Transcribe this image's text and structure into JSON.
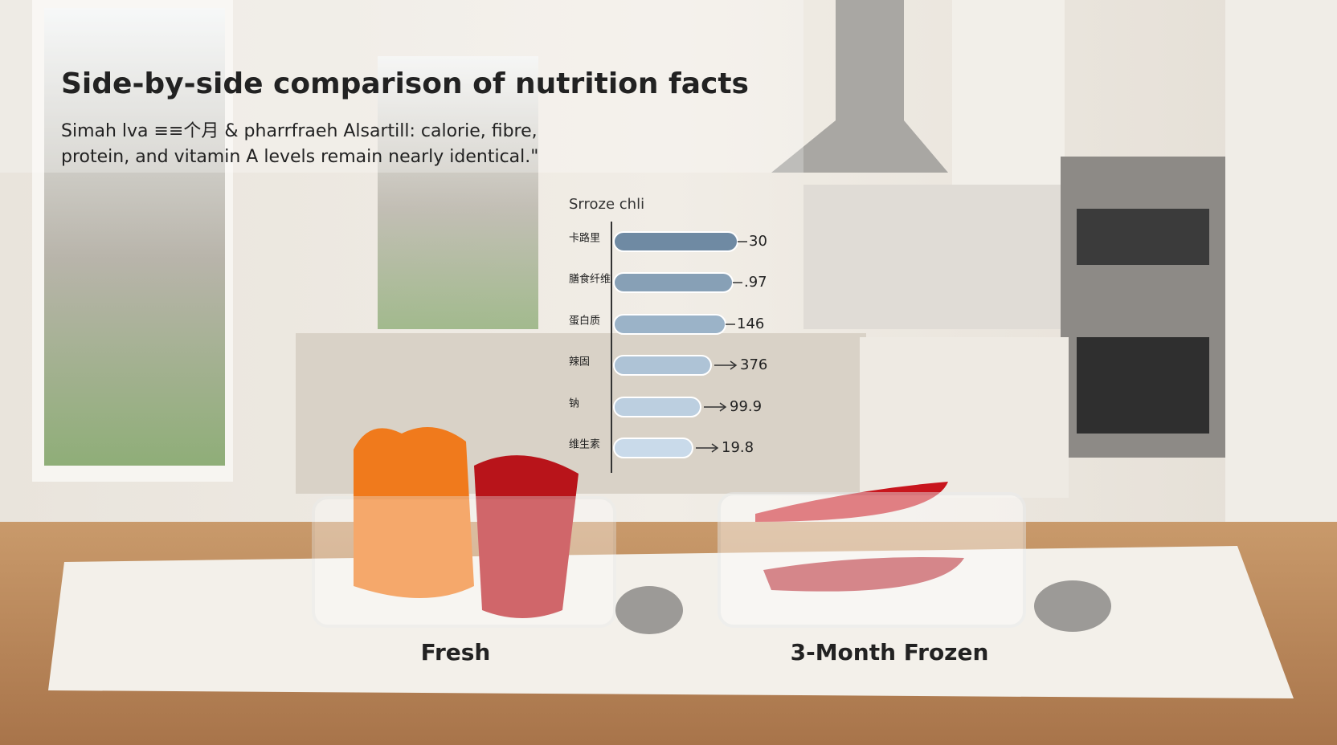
{
  "header": {
    "title": "Side-by-side comparison of nutrition facts",
    "subtitle_lines": [
      "Simah lva ≡≡个月 & pharrfraeh Alsartill: calorie, fibre,",
      "protein, and vitamin A levels remain nearly identical.\""
    ]
  },
  "chart": {
    "title": "Srroze chli",
    "rows": [
      {
        "label": "卡路里",
        "value": "30"
      },
      {
        "label": "膳食纤维",
        "value": ".97"
      },
      {
        "label": "蛋白质",
        "value": "146"
      },
      {
        "label": "辣固",
        "value": "376"
      },
      {
        "label": "钠",
        "value": "99.9"
      },
      {
        "label": "维生素",
        "value": "19.8"
      }
    ]
  },
  "captions": {
    "fresh": "Fresh",
    "frozen": "3-Month Frozen"
  }
}
